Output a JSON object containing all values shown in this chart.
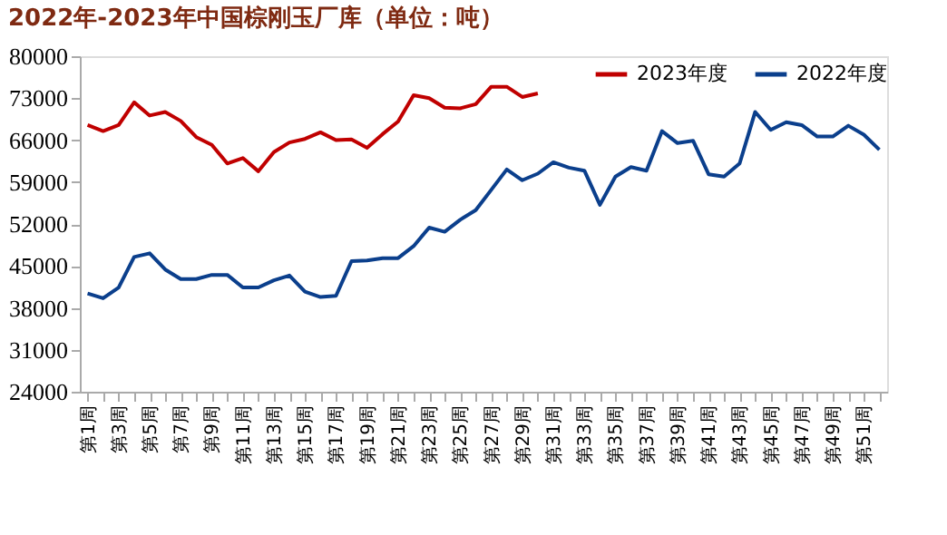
{
  "chart_data": {
    "type": "line",
    "title": "2022年-2023年中国棕刚玉厂库（单位：吨）",
    "categories": [
      "第1周",
      null,
      "第3周",
      null,
      "第5周",
      null,
      "第7周",
      null,
      "第9周",
      null,
      "第11周",
      null,
      "第13周",
      null,
      "第15周",
      null,
      "第17周",
      null,
      "第19周",
      null,
      "第21周",
      null,
      "第23周",
      null,
      "第25周",
      null,
      "第27周",
      null,
      "第29周",
      null,
      "第31周",
      null,
      "第33周",
      null,
      "第35周",
      null,
      "第37周",
      null,
      "第39周",
      null,
      "第41周",
      null,
      "第43周",
      null,
      "第45周",
      null,
      "第47周",
      null,
      "第49周",
      null,
      "第51周",
      null
    ],
    "series": [
      {
        "name": "2023年度",
        "color": "#c00000",
        "values": [
          68500,
          67500,
          68500,
          72300,
          70100,
          70700,
          69200,
          66500,
          65200,
          62100,
          63000,
          60800,
          64000,
          65600,
          66200,
          67300,
          66000,
          66100,
          64700,
          67000,
          69100,
          73500,
          73000,
          71400,
          71300,
          72000,
          74900,
          74900,
          73200,
          73800,
          null,
          null,
          null,
          null,
          null,
          null,
          null,
          null,
          null,
          null,
          null,
          null,
          null,
          null,
          null,
          null,
          null,
          null,
          null,
          null,
          null,
          null
        ]
      },
      {
        "name": "2022年度",
        "color": "#0b3f8c",
        "values": [
          40400,
          39600,
          41400,
          46500,
          47100,
          44400,
          42800,
          42800,
          43500,
          43500,
          41400,
          41400,
          42600,
          43400,
          40700,
          39800,
          40000,
          45800,
          45900,
          46300,
          46300,
          48300,
          51400,
          50700,
          52700,
          54300,
          57700,
          61100,
          59300,
          60400,
          62300,
          61400,
          60900,
          55200,
          59900,
          61500,
          60900,
          67500,
          65500,
          65900,
          60300,
          59900,
          62100,
          70700,
          67700,
          69000,
          68500,
          66600,
          66600,
          68400,
          66900,
          64400
        ]
      }
    ],
    "ylim": [
      24000,
      80000
    ],
    "yticks": [
      24000,
      31000,
      38000,
      45000,
      52000,
      59000,
      66000,
      73000,
      80000
    ],
    "grid": false,
    "legend": "top right",
    "marker": "none",
    "line_style": "solid"
  }
}
